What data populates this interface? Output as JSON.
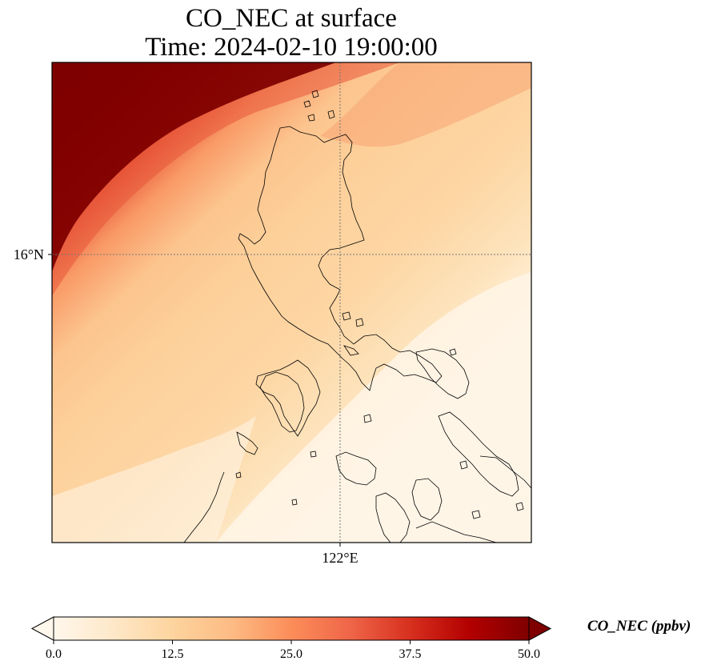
{
  "title": {
    "line1": "CO_NEC at surface",
    "line2": "Time: 2024-02-10 19:00:00"
  },
  "map": {
    "lat_label": "16°N",
    "lon_label": "122°E",
    "gridlines": "dotted"
  },
  "colorbar": {
    "label": "CO_NEC (ppbv)",
    "colormap": "OrRd",
    "ticks": [
      "0.0",
      "12.5",
      "25.0",
      "37.5",
      "50.0"
    ],
    "range": [
      0,
      50
    ],
    "extend": "both",
    "colors": [
      "#fff7ec",
      "#fee8c8",
      "#fdd49e",
      "#fdbb84",
      "#fc8d59",
      "#ef6548",
      "#d7301f",
      "#b30000",
      "#7f0000"
    ]
  }
}
